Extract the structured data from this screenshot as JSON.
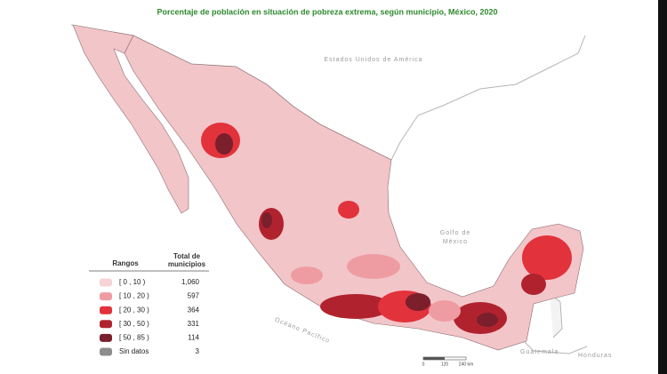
{
  "title": "Porcentaje de población en situación de pobreza extrema, según municipio, México, 2020",
  "map_labels": {
    "usa": "Estados Unidos de América",
    "gulf": [
      "Golfo de",
      "México"
    ],
    "pacific": "Océano Pacífico",
    "guatemala": "Guatemala",
    "honduras": "Honduras"
  },
  "scale_bar": [
    "0",
    "120",
    "240 km"
  ],
  "legend": {
    "header_ranges": "Rangos",
    "header_total": [
      "Total de",
      "municipios"
    ],
    "rows": [
      {
        "range": "[ 0 , 10 )",
        "count": "1,060",
        "color": "#f6d3d5"
      },
      {
        "range": "[ 10 , 20 )",
        "count": "597",
        "color": "#ee9ca2"
      },
      {
        "range": "[ 20 , 30 )",
        "count": "364",
        "color": "#e2323c"
      },
      {
        "range": "[ 30 , 50 )",
        "count": "331",
        "color": "#b0232e"
      },
      {
        "range": "[ 50 , 85 )",
        "count": "114",
        "color": "#7a1f2b"
      },
      {
        "range": "Sin datos",
        "count": "3",
        "color": "#8c8c8c"
      }
    ]
  }
}
